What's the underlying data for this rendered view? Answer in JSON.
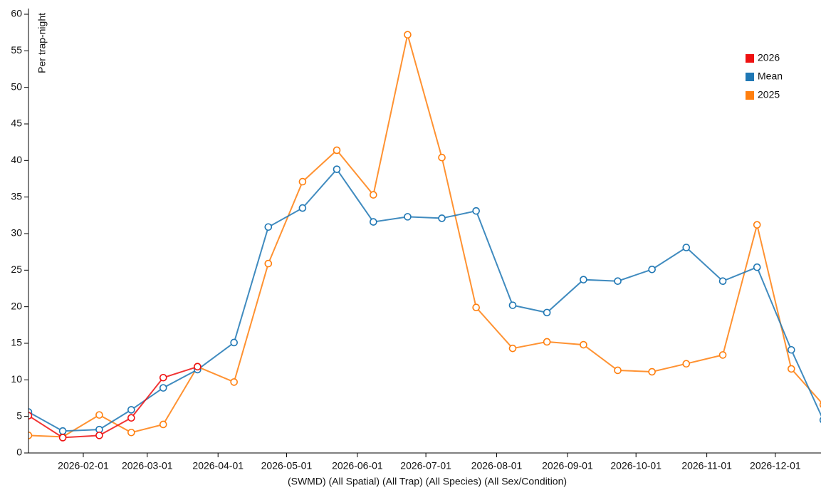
{
  "chart_data": {
    "type": "line",
    "y_label": "Per trap-night",
    "x_label": "(SWMD) (All Spatial) (All Trap) (All Species) (All Sex/Condition)",
    "x": [
      "2026-01-08",
      "2026-01-23",
      "2026-02-08",
      "2026-02-22",
      "2026-03-08",
      "2026-03-23",
      "2026-04-08",
      "2026-04-23",
      "2026-05-08",
      "2026-05-23",
      "2026-06-08",
      "2026-06-23",
      "2026-07-08",
      "2026-07-23",
      "2026-08-08",
      "2026-08-23",
      "2026-09-08",
      "2026-09-23",
      "2026-10-08",
      "2026-10-23",
      "2026-11-08",
      "2026-11-23",
      "2026-12-08",
      "2026-12-22"
    ],
    "series": [
      {
        "name": "2026",
        "color": "#ee1111",
        "values": [
          5.1,
          2.1,
          2.4,
          4.8,
          10.3,
          11.8,
          null,
          null,
          null,
          null,
          null,
          null,
          null,
          null,
          null,
          null,
          null,
          null,
          null,
          null,
          null,
          null,
          null,
          null
        ]
      },
      {
        "name": "Mean",
        "color": "#1f77b4",
        "values": [
          5.6,
          3.0,
          3.2,
          5.9,
          8.9,
          11.4,
          15.1,
          30.9,
          33.5,
          38.8,
          31.6,
          32.3,
          32.1,
          33.1,
          20.2,
          19.2,
          23.7,
          23.5,
          25.1,
          28.1,
          23.5,
          25.4,
          14.1,
          4.5
        ]
      },
      {
        "name": "2025",
        "color": "#ff7f0e",
        "values": [
          2.4,
          2.2,
          5.2,
          2.8,
          3.9,
          11.8,
          9.7,
          25.9,
          37.1,
          41.4,
          35.3,
          57.2,
          40.4,
          19.9,
          14.3,
          15.2,
          14.8,
          11.3,
          11.1,
          12.2,
          13.4,
          31.2,
          11.5,
          6.6
        ]
      }
    ],
    "xlim": [
      "2026-01-08",
      "2026-12-21"
    ],
    "xticks": [
      "2026-02-01",
      "2026-03-01",
      "2026-04-01",
      "2026-05-01",
      "2026-06-01",
      "2026-07-01",
      "2026-08-01",
      "2026-09-01",
      "2026-10-01",
      "2026-11-01",
      "2026-12-01"
    ],
    "ylim": [
      0,
      60
    ],
    "yticks": [
      0,
      5,
      10,
      15,
      20,
      25,
      30,
      35,
      40,
      45,
      50,
      55,
      60
    ],
    "grid": false,
    "legend": "upper right"
  }
}
